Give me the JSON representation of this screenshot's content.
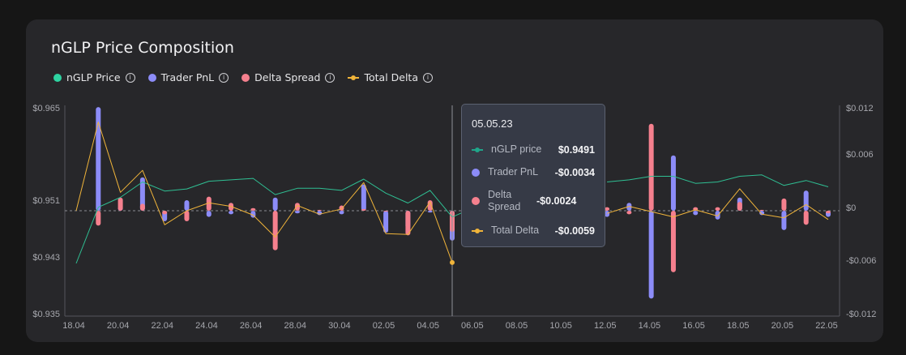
{
  "title": "nGLP Price Composition",
  "legend": [
    {
      "label": "nGLP Price",
      "kind": "dot",
      "color": "#2ed3a1"
    },
    {
      "label": "Trader PnL",
      "kind": "dot",
      "color": "#8c8cf8"
    },
    {
      "label": "Delta Spread",
      "kind": "dot",
      "color": "#f5808e"
    },
    {
      "label": "Total Delta",
      "kind": "line",
      "color": "#f0b43a"
    }
  ],
  "tooltip": {
    "date": "05.05.23",
    "rows": [
      {
        "label": "nGLP price",
        "value": "$0.9491",
        "kind": "line",
        "color": "#1fa58a"
      },
      {
        "label": "Trader PnL",
        "value": "-$0.0034",
        "kind": "dot",
        "color": "#8c8cf8"
      },
      {
        "label": "Delta Spread",
        "value": "-$0.0024",
        "kind": "dot",
        "color": "#f5808e"
      },
      {
        "label": "Total Delta",
        "value": "-$0.0059",
        "kind": "line",
        "color": "#f0b43a"
      }
    ]
  },
  "chart_data": {
    "type": "bar",
    "title": "nGLP Price Composition",
    "left_axis": {
      "ticks": [
        "$0.965",
        "$0.951",
        "$0.943",
        "$0.935"
      ],
      "ylim": [
        0.935,
        0.965
      ]
    },
    "right_axis": {
      "ticks": [
        "$0.012",
        "$0.006",
        "$0",
        "-$0.006",
        "-$0.012"
      ],
      "ylim": [
        -0.012,
        0.012
      ]
    },
    "x_tick_labels": [
      "18.04",
      "20.04",
      "22.04",
      "24.04",
      "26.04",
      "28.04",
      "30.04",
      "02.05",
      "04.05",
      "06.05",
      "08.05",
      "10.05",
      "12.05",
      "14.05",
      "16.05",
      "18.05",
      "20.05",
      "22.05"
    ],
    "x": [
      "18.04",
      "19.04",
      "20.04",
      "21.04",
      "22.04",
      "23.04",
      "24.04",
      "25.04",
      "26.04",
      "27.04",
      "28.04",
      "29.04",
      "30.04",
      "01.05",
      "02.05",
      "03.05",
      "04.05",
      "05.05",
      "06.05",
      "07.05",
      "08.05",
      "09.05",
      "10.05",
      "11.05",
      "12.05",
      "13.05",
      "14.05",
      "15.05",
      "16.05",
      "17.05",
      "18.05",
      "19.05",
      "20.05",
      "21.05",
      "22.05"
    ],
    "series": [
      {
        "name": "nGLP Price",
        "axis": "left",
        "values": [
          0.9425,
          0.9505,
          0.9519,
          0.9541,
          0.9528,
          0.9531,
          0.9542,
          0.9544,
          0.9546,
          0.9523,
          0.9532,
          0.9532,
          0.9529,
          0.9545,
          0.9525,
          0.9511,
          0.9529,
          0.9491,
          0.9505,
          null,
          null,
          null,
          null,
          null,
          0.9541,
          0.9544,
          0.9549,
          0.9549,
          0.9539,
          0.9541,
          0.9549,
          0.9551,
          0.9536,
          0.9543,
          0.9534
        ]
      },
      {
        "name": "Trader PnL",
        "axis": "right",
        "values": [
          0,
          0.0118,
          0.0005,
          0.0038,
          -0.0012,
          0.0012,
          -0.0007,
          -0.0004,
          -0.0008,
          0.0015,
          -0.0003,
          -0.0005,
          -0.0004,
          0.003,
          -0.0025,
          -0.002,
          -0.0002,
          -0.0034,
          null,
          null,
          null,
          null,
          null,
          null,
          -0.0007,
          0.0009,
          -0.01,
          0.0063,
          -0.0005,
          -0.001,
          0.0015,
          -0.0005,
          -0.0022,
          0.0023,
          -0.0007
        ]
      },
      {
        "name": "Delta Spread",
        "axis": "right",
        "values": [
          0,
          -0.0017,
          0.0015,
          0.0008,
          -0.0004,
          -0.0012,
          0.0016,
          0.0009,
          0.0003,
          -0.0045,
          0.0009,
          0.0001,
          0.0006,
          0.0002,
          -0.0001,
          -0.0028,
          0.0012,
          -0.0024,
          null,
          null,
          null,
          null,
          null,
          null,
          0.0004,
          -0.0004,
          0.0099,
          -0.007,
          0.0004,
          0.0004,
          0.001,
          0.0001,
          0.0014,
          -0.0016,
          -0.0003
        ]
      },
      {
        "name": "Total Delta",
        "axis": "right",
        "values": [
          0,
          0.0101,
          0.0021,
          0.0046,
          -0.0016,
          0.0,
          0.0009,
          0.0005,
          -0.0005,
          -0.003,
          0.0006,
          -0.0004,
          0.0002,
          0.0032,
          -0.0026,
          -0.0027,
          0.001,
          -0.0059,
          null,
          null,
          null,
          null,
          null,
          null,
          -0.0003,
          0.0005,
          -0.0001,
          -0.0007,
          0.0001,
          -0.0006,
          0.0025,
          -0.0004,
          -0.0008,
          0.0007,
          -0.001
        ]
      }
    ]
  }
}
